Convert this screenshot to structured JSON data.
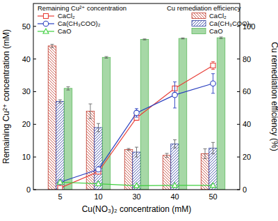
{
  "chart_data": {
    "type": "bar_line",
    "x_label": "Cu(NO₃)₂ concentration (mM)",
    "y_label": "Remaining Cu²⁺ concentration (mM)",
    "y2_label": "Cu remediation efficiency (%)",
    "legend_headers": [
      "Remaining Cu²⁺ concentration",
      "Cu remediation efficiency"
    ],
    "categories": [
      "5",
      "10",
      "30",
      "40",
      "50"
    ],
    "ylim": [
      0,
      57
    ],
    "yticks": [
      0,
      10,
      20,
      30,
      40,
      50
    ],
    "y2lim": [
      0,
      114
    ],
    "y2ticks": [
      0,
      20,
      40,
      60,
      80,
      100
    ],
    "series": [
      {
        "name": "CaCl₂",
        "type": "line",
        "color": "#e8403a",
        "marker": "square",
        "values": [
          0.5,
          5.5,
          22,
          31,
          38
        ],
        "errors": [
          0.2,
          0.4,
          0.8,
          0.5,
          1.2
        ]
      },
      {
        "name": "Ca(CH₃COO)₂",
        "type": "line",
        "color": "#2a3fbf",
        "marker": "circle",
        "values": [
          2.3,
          6.2,
          23.5,
          29,
          32.5
        ],
        "errors": [
          0.2,
          0.5,
          1.3,
          4,
          3
        ]
      },
      {
        "name": "CaO",
        "type": "line",
        "color": "#3fcf3f",
        "marker": "triangle",
        "values": [
          2.3,
          1.8,
          1.2,
          1.3,
          1.3
        ],
        "errors": [
          0.1,
          0.1,
          0.1,
          0.1,
          0.1
        ]
      },
      {
        "name": "CaCl₂",
        "type": "bar",
        "axis": "y2",
        "color": "#c0392b",
        "values": [
          88,
          48,
          24.6,
          21,
          22
        ],
        "errors": [
          1,
          4.5,
          0.6,
          1.2,
          3
        ]
      },
      {
        "name": "Ca(CH₃COO)₂",
        "type": "bar",
        "axis": "y2",
        "color": "#2c3e9f",
        "values": [
          54,
          38,
          23,
          28,
          25.4
        ],
        "errors": [
          1,
          2.5,
          3,
          2.5,
          3.5
        ]
      },
      {
        "name": "CaO",
        "type": "bar",
        "axis": "y2",
        "color": "#5cb85c",
        "values": [
          62,
          81,
          92,
          92.6,
          93
        ],
        "errors": [
          1,
          0.5,
          0.3,
          0.3,
          0.5
        ]
      }
    ]
  }
}
